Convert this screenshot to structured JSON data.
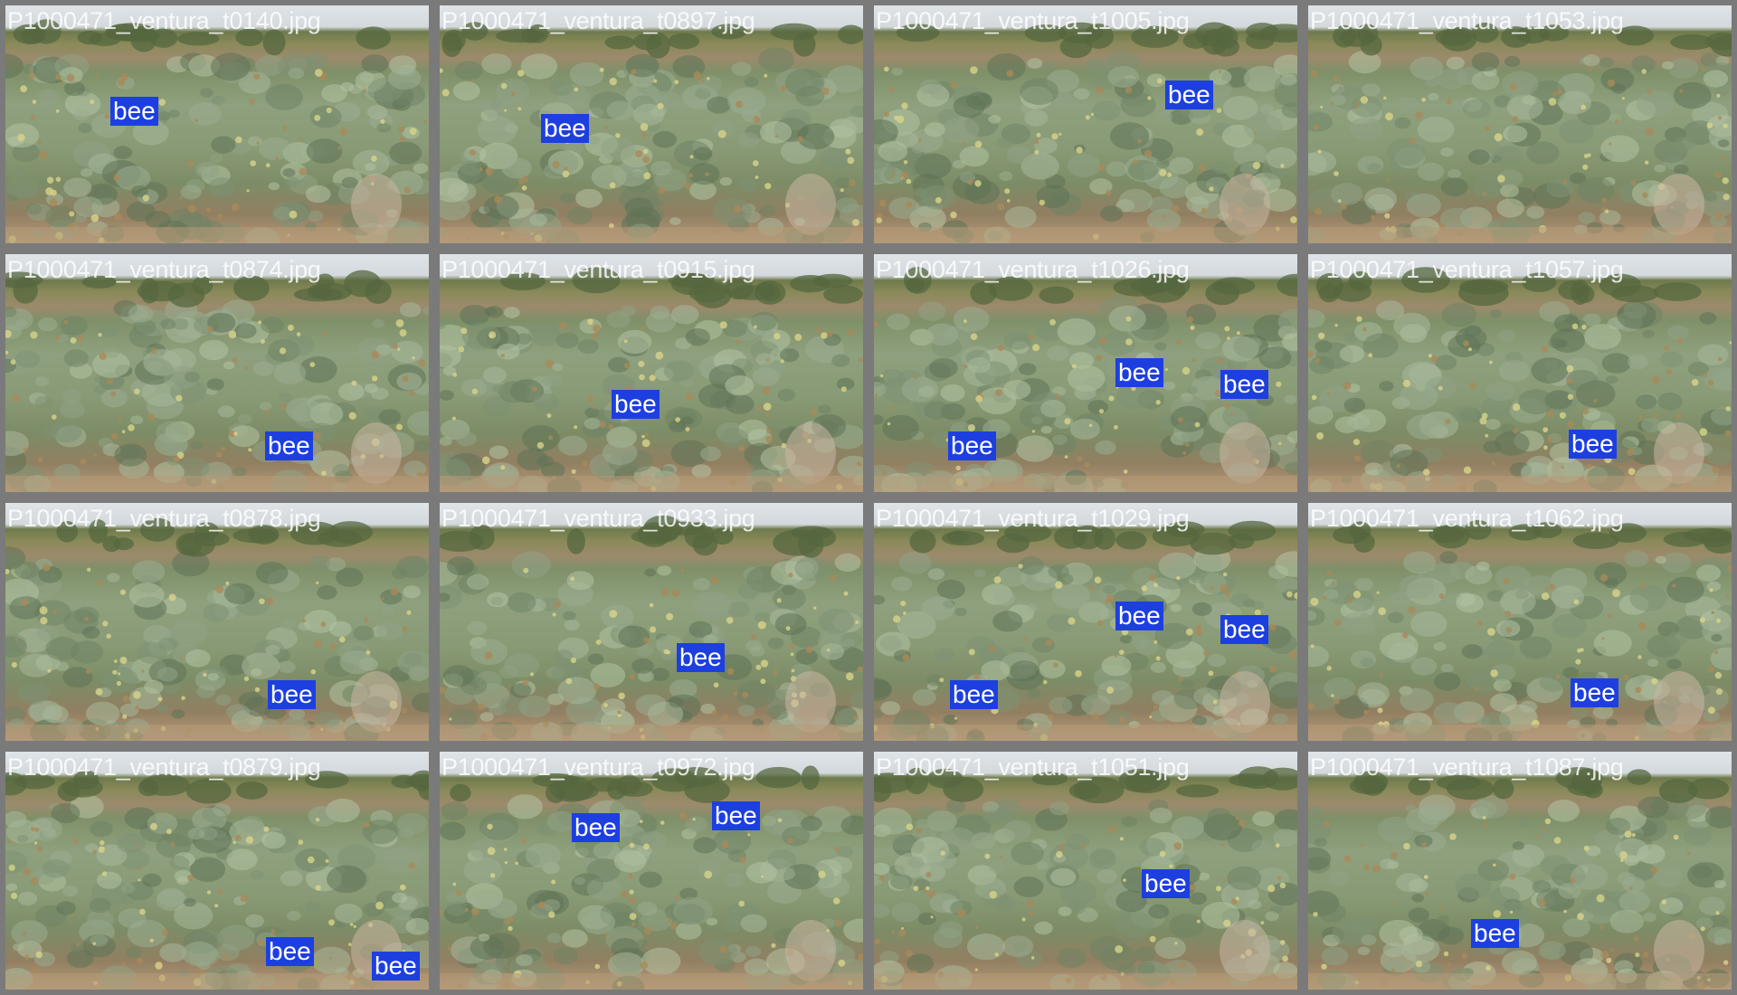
{
  "colors": {
    "frame": "#7a7a7a",
    "label_bg": "#1d3fe0",
    "label_text": "#ffffff"
  },
  "detection_class": "bee",
  "tiles": [
    {
      "title": "P1000471_ventura_t0140.jpg",
      "detections": [
        "bee"
      ]
    },
    {
      "title": "P1000471_ventura_t0897.jpg",
      "detections": [
        "bee"
      ]
    },
    {
      "title": "P1000471_ventura_t1005.jpg",
      "detections": [
        "bee"
      ]
    },
    {
      "title": "P1000471_ventura_t1053.jpg",
      "detections": []
    },
    {
      "title": "P1000471_ventura_t0874.jpg",
      "detections": [
        "bee"
      ]
    },
    {
      "title": "P1000471_ventura_t0915.jpg",
      "detections": [
        "bee"
      ]
    },
    {
      "title": "P1000471_ventura_t1026.jpg",
      "detections": [
        "bee",
        "bee",
        "bee"
      ]
    },
    {
      "title": "P1000471_ventura_t1057.jpg",
      "detections": [
        "bee"
      ]
    },
    {
      "title": "P1000471_ventura_t0878.jpg",
      "detections": [
        "bee"
      ]
    },
    {
      "title": "P1000471_ventura_t0933.jpg",
      "detections": [
        "bee"
      ]
    },
    {
      "title": "P1000471_ventura_t1029.jpg",
      "detections": [
        "bee",
        "bee",
        "bee"
      ]
    },
    {
      "title": "P1000471_ventura_t1062.jpg",
      "detections": [
        "bee"
      ]
    },
    {
      "title": "P1000471_ventura_t0879.jpg",
      "detections": [
        "bee",
        "bee"
      ]
    },
    {
      "title": "P1000471_ventura_t0972.jpg",
      "detections": [
        "bee",
        "bee"
      ]
    },
    {
      "title": "P1000471_ventura_t1051.jpg",
      "detections": [
        "bee"
      ]
    },
    {
      "title": "P1000471_ventura_t1087.jpg",
      "detections": [
        "bee"
      ]
    }
  ]
}
